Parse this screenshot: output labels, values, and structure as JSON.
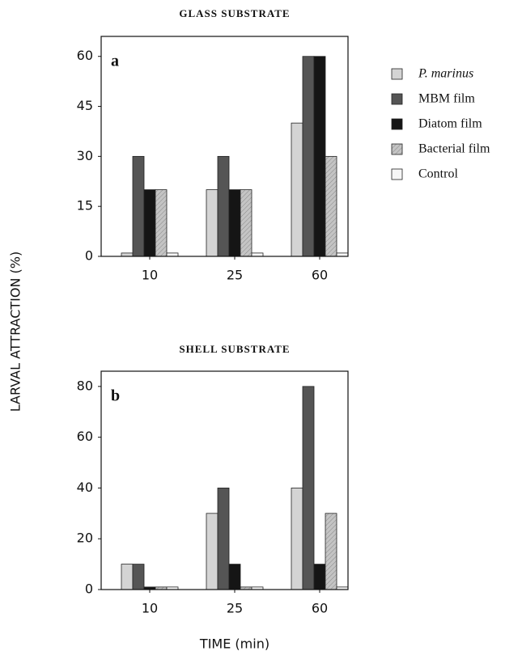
{
  "chart_data": [
    {
      "type": "bar",
      "title": "GLASS SUBSTRATE",
      "panel_label": "a",
      "ylabel": "LARVAL ATTRACTION  (%)",
      "categories": [
        "10",
        "25",
        "60"
      ],
      "series": [
        {
          "name": "P. marinus",
          "color": "#d4d4d4",
          "values": [
            1,
            20,
            40
          ]
        },
        {
          "name": "MBM film",
          "color": "#555555",
          "values": [
            30,
            30,
            60
          ]
        },
        {
          "name": "Diatom film",
          "color": "#151515",
          "values": [
            20,
            20,
            60
          ]
        },
        {
          "name": "Bacterial film",
          "color": "#c4c4c4",
          "hatch": true,
          "values": [
            20,
            20,
            30
          ]
        },
        {
          "name": "Control",
          "color": "#f6f6f6",
          "values": [
            1,
            1,
            1
          ]
        }
      ],
      "ylim": [
        0,
        66
      ],
      "yticks": [
        0,
        15,
        30,
        45,
        60
      ]
    },
    {
      "type": "bar",
      "title": "SHELL SUBSTRATE",
      "panel_label": "b",
      "xlabel": "TIME  (min)",
      "categories": [
        "10",
        "25",
        "60"
      ],
      "series": [
        {
          "color": "#d4d4d4",
          "values": [
            10,
            30,
            40
          ]
        },
        {
          "color": "#555555",
          "values": [
            10,
            40,
            80
          ]
        },
        {
          "color": "#151515",
          "values": [
            1,
            10,
            10
          ]
        },
        {
          "color": "#c4c4c4",
          "hatch": true,
          "values": [
            1,
            1,
            30
          ]
        },
        {
          "color": "#f6f6f6",
          "values": [
            1,
            1,
            1
          ]
        }
      ],
      "ylim": [
        0,
        86
      ],
      "yticks": [
        0,
        20,
        40,
        60,
        80
      ]
    }
  ]
}
